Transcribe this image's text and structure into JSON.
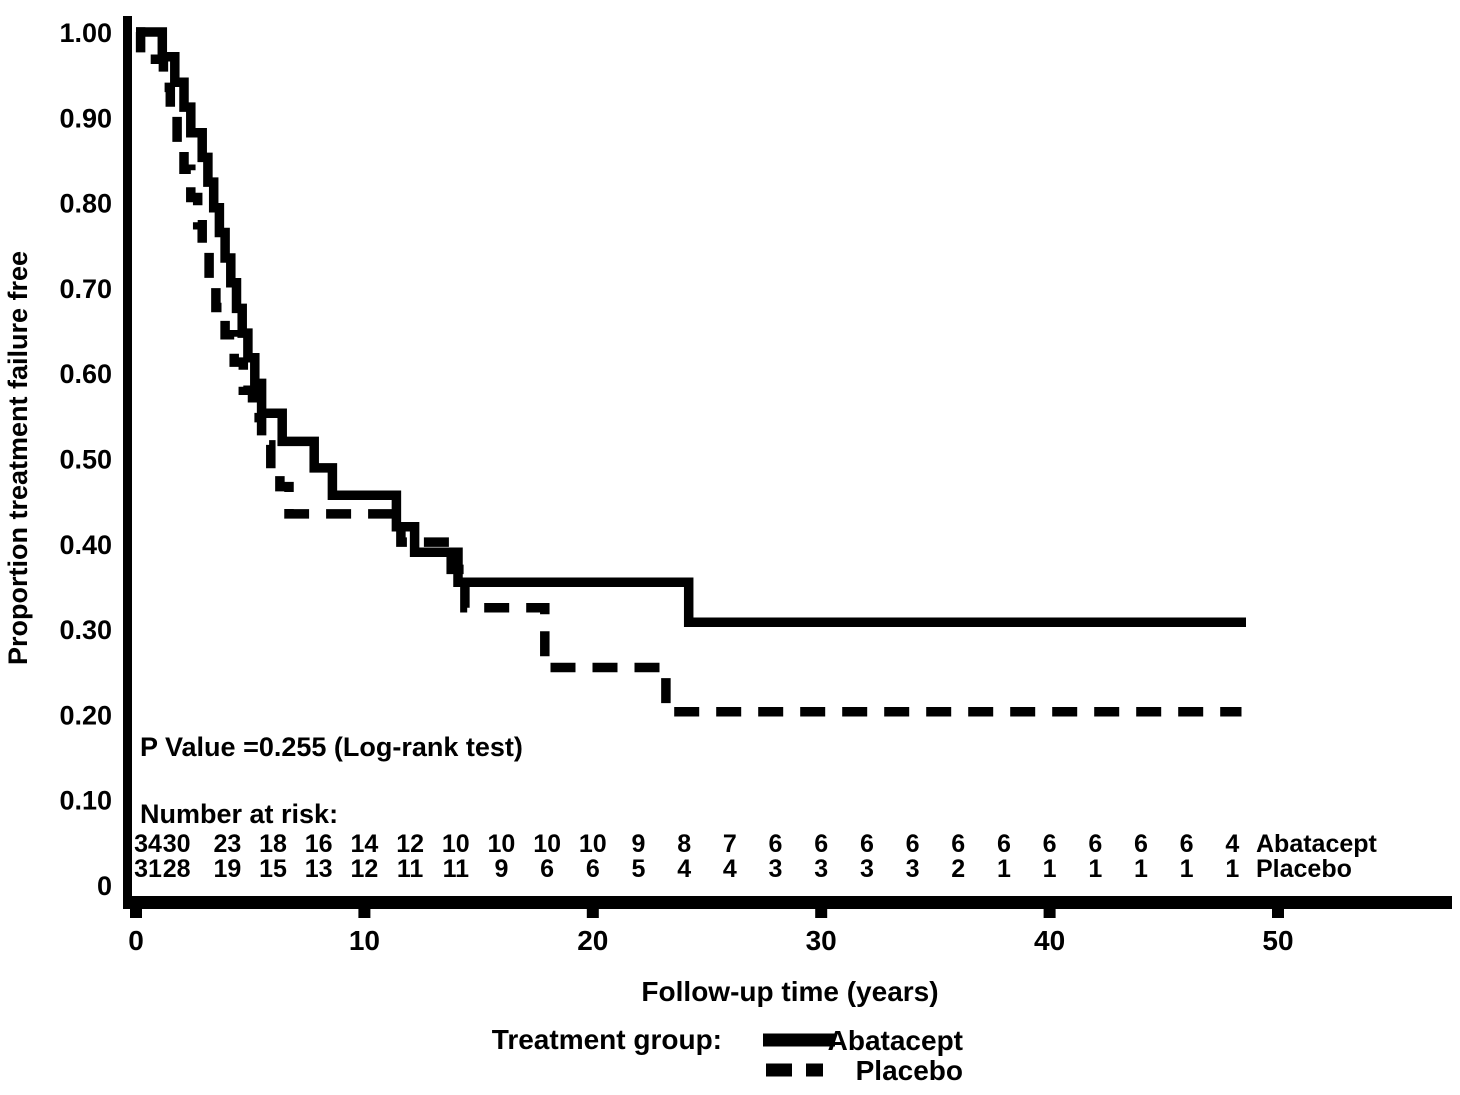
{
  "colors": {
    "line": "#000000",
    "background": "#ffffff",
    "text": "#000000"
  },
  "annotations": {
    "p_value": "P Value =0.255 (Log-rank test)"
  },
  "number_at_risk": {
    "label": "Number at risk:",
    "times": [
      0,
      2,
      4,
      6,
      8,
      10,
      12,
      14,
      16,
      18,
      20,
      22,
      24,
      26,
      28,
      30,
      32,
      34,
      36,
      38,
      40,
      42,
      44,
      46,
      48
    ],
    "rows": [
      {
        "label": "Abatacept",
        "values": [
          34,
          30,
          23,
          18,
          16,
          14,
          12,
          10,
          10,
          10,
          10,
          9,
          8,
          7,
          6,
          6,
          6,
          6,
          6,
          6,
          6,
          6,
          6,
          6,
          4
        ]
      },
      {
        "label": "Placebo",
        "values": [
          31,
          28,
          19,
          15,
          13,
          12,
          11,
          11,
          9,
          6,
          6,
          5,
          4,
          4,
          3,
          3,
          3,
          3,
          2,
          1,
          1,
          1,
          1,
          1,
          1
        ]
      }
    ]
  },
  "legend": {
    "title": "Treatment group:",
    "entries": [
      {
        "label": "Abatacept",
        "line_style": "solid"
      },
      {
        "label": "Placebo",
        "line_style": "dashed"
      }
    ]
  },
  "chart_data": {
    "type": "line",
    "variant": "kaplan-meier-step",
    "title": "",
    "xlabel": "Follow-up time (years)",
    "ylabel": "Proportion treatment failure free",
    "xlim": [
      0,
      57.5
    ],
    "ylim": [
      0,
      1.0
    ],
    "grid": false,
    "xticks": [
      0,
      10,
      20,
      30,
      40,
      50
    ],
    "yticks": [
      {
        "value": 1.0,
        "label": "1.00"
      },
      {
        "value": 0.9,
        "label": "0.90"
      },
      {
        "value": 0.8,
        "label": "0.80"
      },
      {
        "value": 0.7,
        "label": "0.70"
      },
      {
        "value": 0.6,
        "label": "0.60"
      },
      {
        "value": 0.5,
        "label": "0.50"
      },
      {
        "value": 0.4,
        "label": "0.40"
      },
      {
        "value": 0.3,
        "label": "0.30"
      },
      {
        "value": 0.2,
        "label": "0.20"
      },
      {
        "value": 0.1,
        "label": "0.10"
      },
      {
        "value": 0.0,
        "label": "0"
      }
    ],
    "series": [
      {
        "name": "Abatacept",
        "line_style": "solid",
        "start_value": 1.0,
        "end_time": 48.6,
        "steps": [
          [
            1.15,
            0.971
          ],
          [
            1.7,
            0.941
          ],
          [
            2.1,
            0.912
          ],
          [
            2.4,
            0.882
          ],
          [
            2.9,
            0.853
          ],
          [
            3.15,
            0.824
          ],
          [
            3.4,
            0.794
          ],
          [
            3.65,
            0.765
          ],
          [
            3.9,
            0.735
          ],
          [
            4.15,
            0.706
          ],
          [
            4.4,
            0.676
          ],
          [
            4.65,
            0.647
          ],
          [
            4.9,
            0.618
          ],
          [
            5.2,
            0.588
          ],
          [
            5.5,
            0.553
          ],
          [
            6.4,
            0.52
          ],
          [
            7.8,
            0.489
          ],
          [
            8.6,
            0.457
          ],
          [
            11.4,
            0.42
          ],
          [
            12.2,
            0.39
          ],
          [
            14.1,
            0.355
          ],
          [
            24.2,
            0.308
          ]
        ]
      },
      {
        "name": "Placebo",
        "line_style": "dashed",
        "start_value": 1.0,
        "end_time": 48.4,
        "steps": [
          [
            0.2,
            0.968
          ],
          [
            1.2,
            0.935
          ],
          [
            1.5,
            0.903
          ],
          [
            1.8,
            0.871
          ],
          [
            2.1,
            0.839
          ],
          [
            2.4,
            0.806
          ],
          [
            2.7,
            0.774
          ],
          [
            2.9,
            0.742
          ],
          [
            3.2,
            0.71
          ],
          [
            3.5,
            0.677
          ],
          [
            3.9,
            0.645
          ],
          [
            4.3,
            0.613
          ],
          [
            4.7,
            0.58
          ],
          [
            5.1,
            0.548
          ],
          [
            5.5,
            0.516
          ],
          [
            5.9,
            0.484
          ],
          [
            6.3,
            0.467
          ],
          [
            6.7,
            0.435
          ],
          [
            11.6,
            0.402
          ],
          [
            13.8,
            0.37
          ],
          [
            14.4,
            0.325
          ],
          [
            17.9,
            0.255
          ],
          [
            23.2,
            0.203
          ]
        ]
      }
    ]
  }
}
